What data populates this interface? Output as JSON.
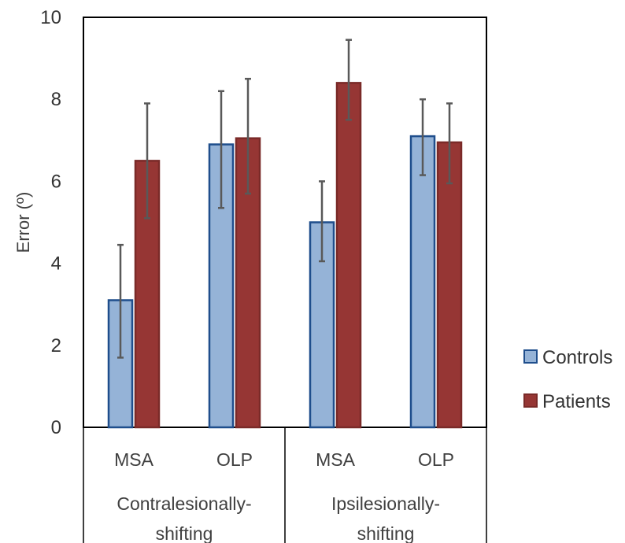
{
  "chart_data": {
    "type": "bar",
    "ylabel": "Error (º)",
    "ylim": [
      0,
      10
    ],
    "yticks": [
      "0",
      "2",
      "4",
      "6",
      "8",
      "10"
    ],
    "groups": [
      {
        "label_lines": [
          "Contralesionally-",
          "shifting"
        ],
        "categories": [
          "MSA",
          "OLP"
        ]
      },
      {
        "label_lines": [
          "Ipsilesionally-",
          "shifting"
        ],
        "categories": [
          "MSA",
          "OLP"
        ]
      }
    ],
    "series": [
      {
        "name": "Controls",
        "fill": "#95b3d7",
        "stroke": "#1f4e8c",
        "values": [
          3.1,
          6.9,
          5.0,
          7.1
        ],
        "error": [
          [
            1.7,
            4.45
          ],
          [
            5.35,
            8.2
          ],
          [
            4.05,
            6.0
          ],
          [
            6.15,
            8.0
          ]
        ]
      },
      {
        "name": "Patients",
        "fill": "#963634",
        "stroke": "#7a2a28",
        "values": [
          6.5,
          7.05,
          8.4,
          6.95
        ],
        "error": [
          [
            5.1,
            7.9
          ],
          [
            5.7,
            8.5
          ],
          [
            7.5,
            9.45
          ],
          [
            5.95,
            7.9
          ]
        ]
      }
    ],
    "legend_position": "right",
    "grid": false
  }
}
